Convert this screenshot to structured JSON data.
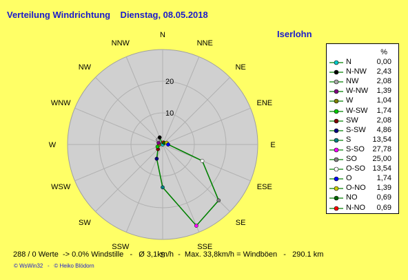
{
  "title": "Verteilung Windrichtung    Dienstag, 08.05.2018",
  "location": "Iserlohn",
  "footer": "288 / 0 Werte  -> 0.0% Windstille   -   Ø 3,1km/h  -  Max. 33,8km/h = Windböen   -   290.1 km",
  "credits": "© WsWin32   -   © Heiko Blödorn",
  "legend_unit": "%",
  "chart_data": {
    "type": "polar-line",
    "directions": [
      "N",
      "NNE",
      "NE",
      "ENE",
      "E",
      "ESE",
      "SE",
      "SSE",
      "S",
      "SSW",
      "SW",
      "WSW",
      "W",
      "WNW",
      "NW",
      "NNW"
    ],
    "radial_ticks": [
      10,
      20
    ],
    "rmax": 30,
    "series_color": "#008000",
    "values": [
      0.0,
      0.69,
      0.69,
      1.39,
      1.74,
      13.54,
      25.0,
      27.78,
      13.54,
      4.86,
      2.08,
      1.74,
      1.04,
      1.39,
      2.08,
      2.43
    ],
    "legend": [
      {
        "name": "N",
        "value": "0,00",
        "color": "#00cccc"
      },
      {
        "name": "N-NW",
        "value": "2,43",
        "color": "#000000"
      },
      {
        "name": "NW",
        "value": "2,08",
        "color": "#aaaaaa"
      },
      {
        "name": "W-NW",
        "value": "1,39",
        "color": "#800080"
      },
      {
        "name": "W",
        "value": "1,04",
        "color": "#808000"
      },
      {
        "name": "W-SW",
        "value": "1,74",
        "color": "#00cc00"
      },
      {
        "name": "SW",
        "value": "2,08",
        "color": "#800000"
      },
      {
        "name": "S-SW",
        "value": "4,86",
        "color": "#000080"
      },
      {
        "name": "S",
        "value": "13,54",
        "color": "#008080"
      },
      {
        "name": "S-SO",
        "value": "27,78",
        "color": "#ff00ff"
      },
      {
        "name": "SO",
        "value": "25,00",
        "color": "#808080"
      },
      {
        "name": "O-SO",
        "value": "13,54",
        "color": "#ffffff"
      },
      {
        "name": "O",
        "value": "1,74",
        "color": "#0000ff"
      },
      {
        "name": "O-NO",
        "value": "1,39",
        "color": "#cccc00"
      },
      {
        "name": "NO",
        "value": "0,69",
        "color": "#006600"
      },
      {
        "name": "N-NO",
        "value": "0,69",
        "color": "#ff0000"
      }
    ]
  }
}
